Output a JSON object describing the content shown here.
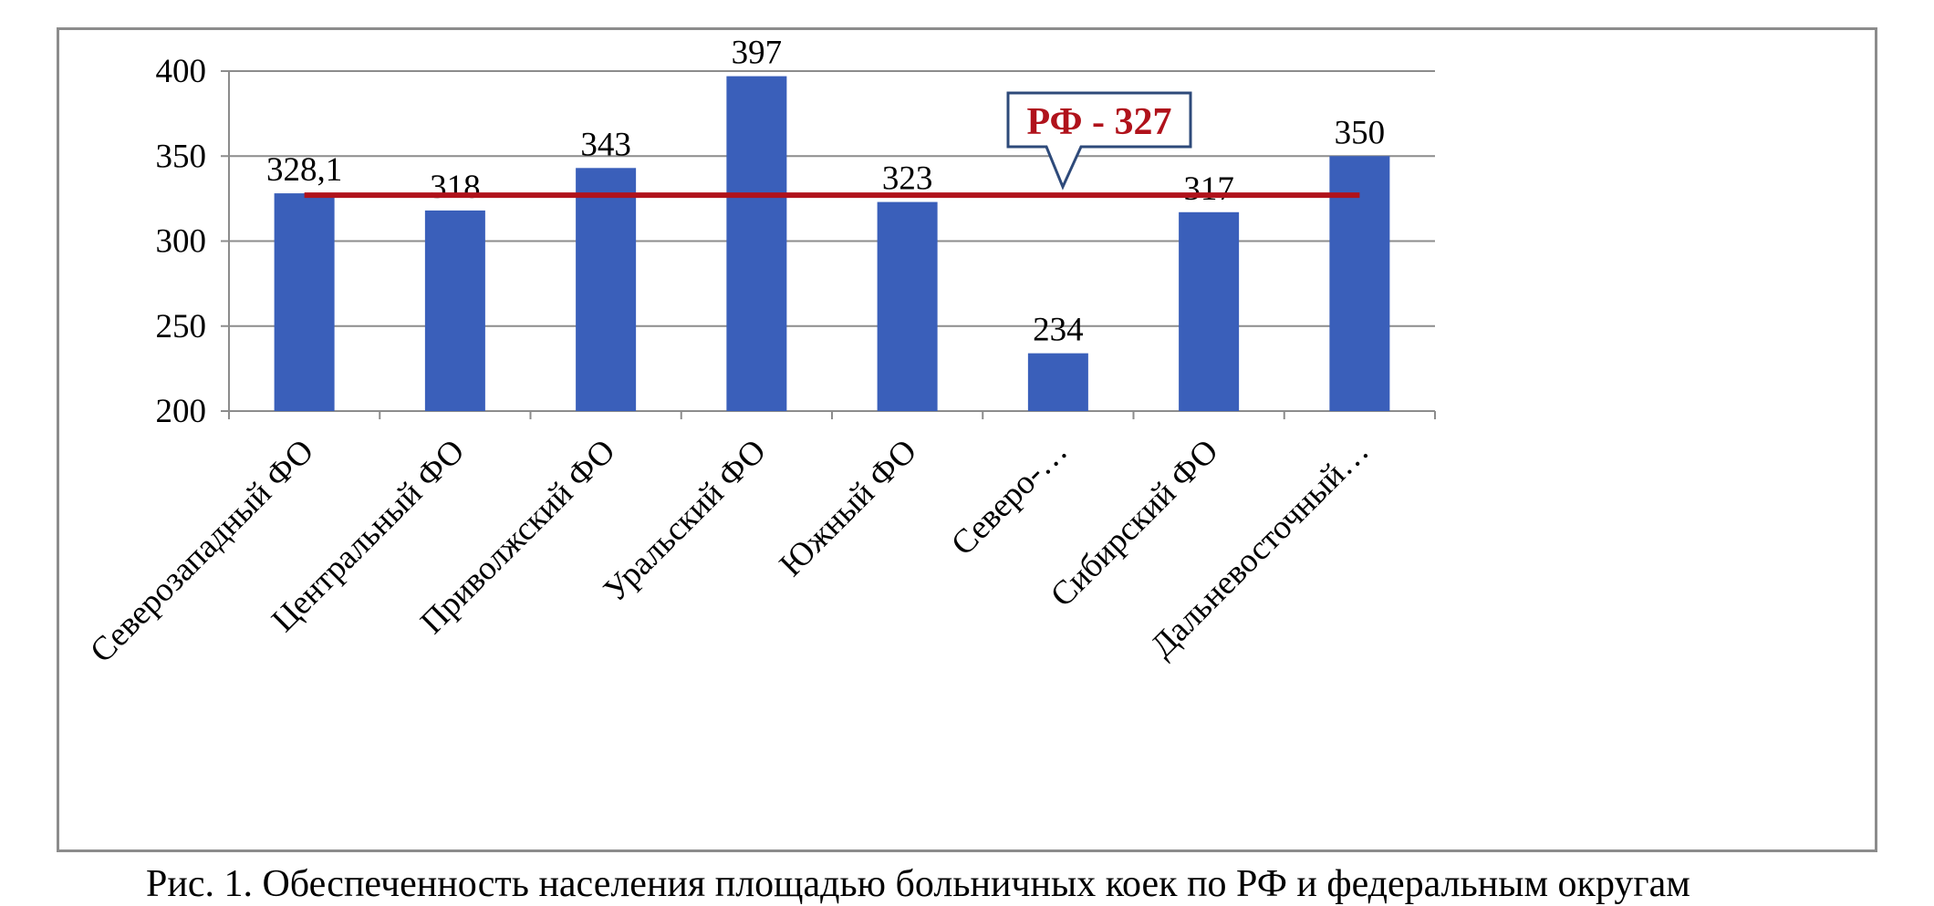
{
  "chart_data": {
    "type": "bar",
    "title": "",
    "xlabel": "",
    "ylabel": "",
    "categories": [
      "Северозападный ФО",
      "Центральный ФО",
      "Приволжский ФО",
      "Уральский ФО",
      "Южный ФО",
      "Северо-…",
      "Сибирский ФО",
      "Дальневосточный…"
    ],
    "values": [
      328.1,
      318,
      343,
      397,
      323,
      234,
      317,
      350
    ],
    "data_labels": [
      "328,1",
      "318",
      "343",
      "397",
      "323",
      "234",
      "317",
      "350"
    ],
    "ylim": [
      200,
      400
    ],
    "yticks": [
      200,
      250,
      300,
      350,
      400
    ],
    "grid": true,
    "bar_color": "#3a5fba",
    "reference_line": {
      "value": 327,
      "label": "РФ - 327",
      "color": "#b0121b"
    },
    "callout_border_color": "#2e4a7a"
  },
  "caption": "Рис. 1. Обеспеченность населения площадью больничных коек по РФ и федеральным округам"
}
